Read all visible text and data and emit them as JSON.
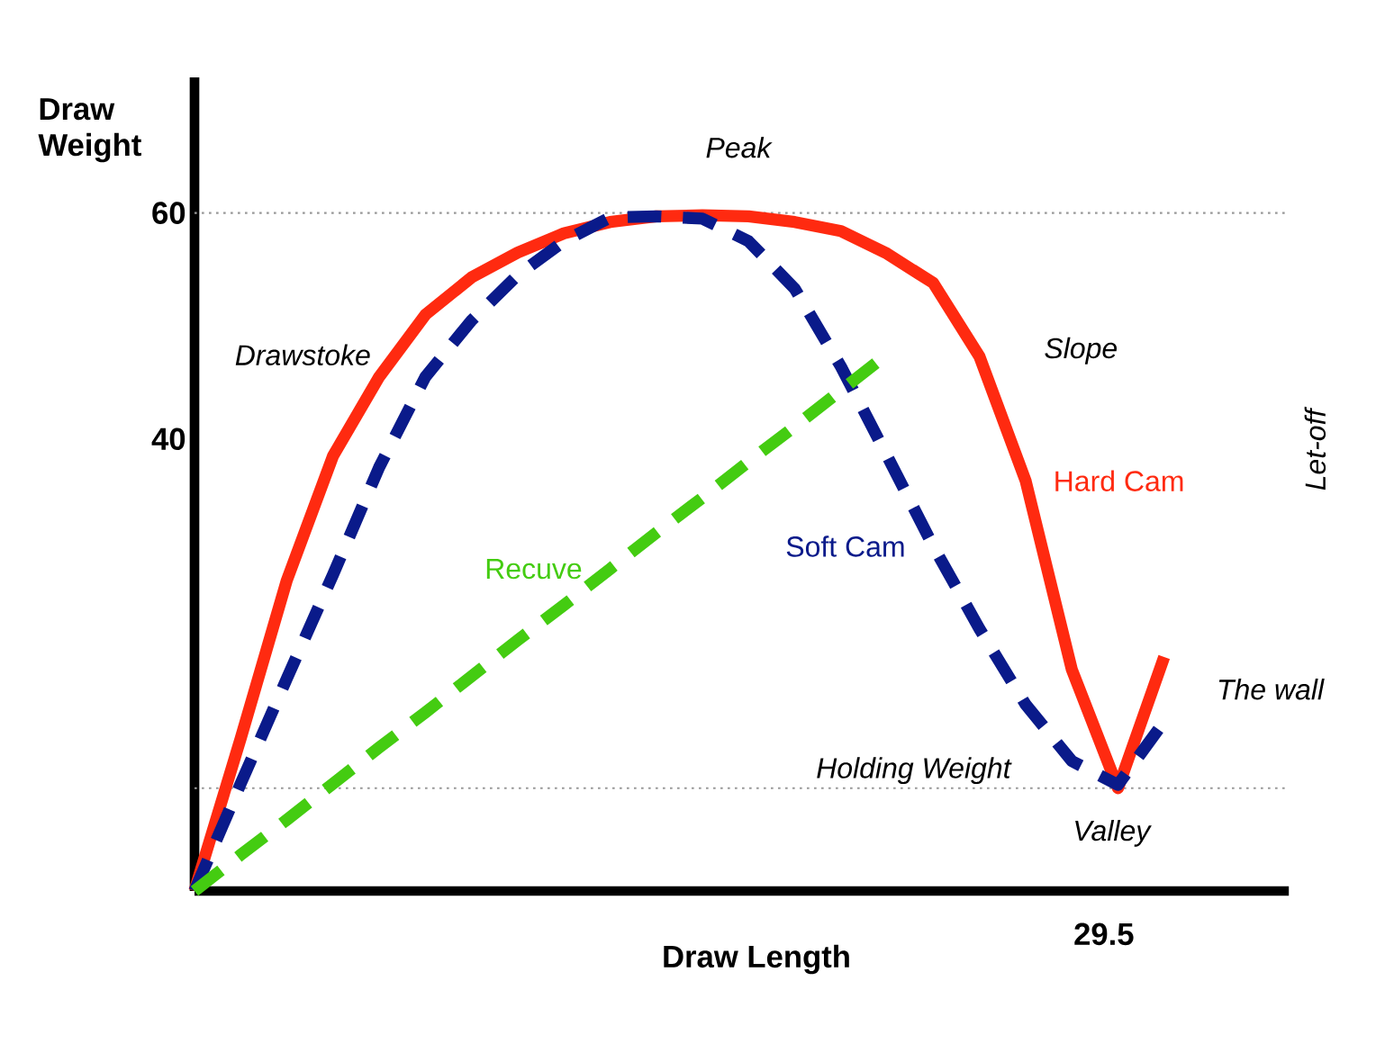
{
  "chart_data": {
    "type": "line",
    "xlabel": "Draw Length",
    "categories": [
      null,
      null,
      null,
      null,
      null,
      null,
      null,
      null,
      null,
      null,
      null,
      null,
      null,
      null,
      null,
      null,
      null,
      null,
      null,
      null,
      null,
      null,
      null,
      null
    ],
    "ylim": [
      0,
      72
    ],
    "yticks": [
      40,
      60
    ],
    "series": [
      {
        "name": "Hard Cam",
        "color": "#ff2a10",
        "line_style": "solid",
        "values": [
          0,
          13.5,
          27.5,
          38.5,
          45.5,
          51,
          54.3,
          56.5,
          58.2,
          59.2,
          59.7,
          59.8,
          59.7,
          59.2,
          58.4,
          56.4,
          53.8,
          47.3,
          36.3,
          19.6,
          9.1,
          20.7,
          null,
          null
        ]
      },
      {
        "name": "Soft Cam",
        "color": "#0a1a8a",
        "line_style": "dashed",
        "values": [
          0,
          9.5,
          18.8,
          28,
          37.5,
          45.5,
          50.5,
          54.5,
          57.5,
          59.6,
          59.7,
          59.5,
          57.5,
          53.3,
          46.4,
          38.5,
          30.5,
          23.2,
          16.5,
          11.5,
          9.4,
          15,
          null,
          null
        ]
      },
      {
        "name": "Recuve",
        "color": "#44cc11",
        "line_style": "dashed",
        "values": [
          0,
          3.2,
          6.3,
          9.5,
          12.7,
          15.8,
          19,
          22.2,
          25.3,
          28.5,
          31.7,
          34.8,
          38,
          41.1,
          44.3,
          47.5,
          null,
          null,
          null,
          null,
          null,
          null,
          null,
          null
        ]
      }
    ],
    "ref_lines": [
      {
        "axis": "y",
        "value": 60,
        "color": "#999999",
        "line_style": "dotted"
      },
      {
        "axis": "y",
        "value": 9.1,
        "color": "#999999",
        "line_style": "dotted"
      }
    ],
    "annotations": [
      "Peak",
      "Drawstoke",
      "Slope",
      "Holding Weight",
      "Valley",
      "The wall",
      "Let-off",
      "29.5",
      "Draw Weight"
    ]
  }
}
